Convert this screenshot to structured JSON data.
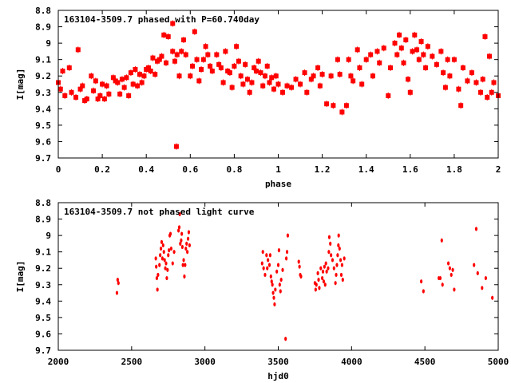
{
  "chart_data": [
    {
      "type": "scatter",
      "title": "163104-3509.7 phased with P=60.740day",
      "xlabel": "phase",
      "ylabel": "I[mag]",
      "xlim": [
        0,
        2
      ],
      "ylim": [
        9.7,
        8.8
      ],
      "y_inverted": true,
      "grid": false,
      "color": "#ff0000",
      "marker": "square",
      "x_ticks": [
        {
          "v": 0,
          "label": "0"
        },
        {
          "v": 0.2,
          "label": "0.2"
        },
        {
          "v": 0.4,
          "label": "0.4"
        },
        {
          "v": 0.6,
          "label": "0.6"
        },
        {
          "v": 0.8,
          "label": "0.8"
        },
        {
          "v": 1,
          "label": "1"
        },
        {
          "v": 1.2,
          "label": "1.2"
        },
        {
          "v": 1.4,
          "label": "1.4"
        },
        {
          "v": 1.6,
          "label": "1.6"
        },
        {
          "v": 1.8,
          "label": "1.8"
        },
        {
          "v": 2,
          "label": "2"
        }
      ],
      "y_ticks": [
        {
          "v": 8.8,
          "label": "8.8"
        },
        {
          "v": 8.9,
          "label": "8.9"
        },
        {
          "v": 9.0,
          "label": "9"
        },
        {
          "v": 9.1,
          "label": "9.1"
        },
        {
          "v": 9.2,
          "label": "9.2"
        },
        {
          "v": 9.3,
          "label": "9.3"
        },
        {
          "v": 9.4,
          "label": "9.4"
        },
        {
          "v": 9.5,
          "label": "9.5"
        },
        {
          "v": 9.6,
          "label": "9.6"
        },
        {
          "v": 9.7,
          "label": "9.7"
        }
      ],
      "points": [
        [
          0.0,
          9.24
        ],
        [
          0.01,
          9.28
        ],
        [
          0.02,
          9.17
        ],
        [
          0.03,
          9.32
        ],
        [
          0.05,
          9.15
        ],
        [
          0.06,
          9.3
        ],
        [
          0.08,
          9.33
        ],
        [
          0.09,
          9.04
        ],
        [
          0.1,
          9.28
        ],
        [
          0.11,
          9.26
        ],
        [
          0.12,
          9.35
        ],
        [
          0.13,
          9.34
        ],
        [
          0.15,
          9.2
        ],
        [
          0.16,
          9.29
        ],
        [
          0.17,
          9.23
        ],
        [
          0.18,
          9.34
        ],
        [
          0.19,
          9.32
        ],
        [
          0.2,
          9.25
        ],
        [
          0.21,
          9.34
        ],
        [
          0.22,
          9.26
        ],
        [
          0.23,
          9.31
        ],
        [
          0.25,
          9.21
        ],
        [
          0.26,
          9.23
        ],
        [
          0.27,
          9.24
        ],
        [
          0.28,
          9.31
        ],
        [
          0.29,
          9.22
        ],
        [
          0.3,
          9.27
        ],
        [
          0.31,
          9.21
        ],
        [
          0.32,
          9.32
        ],
        [
          0.33,
          9.18
        ],
        [
          0.34,
          9.25
        ],
        [
          0.35,
          9.16
        ],
        [
          0.36,
          9.26
        ],
        [
          0.37,
          9.19
        ],
        [
          0.38,
          9.24
        ],
        [
          0.39,
          9.2
        ],
        [
          0.4,
          9.16
        ],
        [
          0.41,
          9.15
        ],
        [
          0.42,
          9.17
        ],
        [
          0.43,
          9.09
        ],
        [
          0.44,
          9.19
        ],
        [
          0.45,
          9.11
        ],
        [
          0.46,
          9.1
        ],
        [
          0.47,
          9.08
        ],
        [
          0.48,
          8.95
        ],
        [
          0.49,
          9.12
        ],
        [
          0.5,
          8.96
        ],
        [
          0.52,
          8.88
        ],
        [
          0.52,
          9.05
        ],
        [
          0.53,
          9.11
        ],
        [
          0.537,
          9.63
        ],
        [
          0.54,
          9.07
        ],
        [
          0.55,
          9.2
        ],
        [
          0.56,
          9.05
        ],
        [
          0.57,
          8.98
        ],
        [
          0.58,
          9.07
        ],
        [
          0.6,
          9.2
        ],
        [
          0.61,
          9.14
        ],
        [
          0.62,
          8.93
        ],
        [
          0.63,
          9.1
        ],
        [
          0.64,
          9.23
        ],
        [
          0.65,
          9.16
        ],
        [
          0.66,
          9.1
        ],
        [
          0.67,
          9.02
        ],
        [
          0.68,
          9.07
        ],
        [
          0.69,
          9.14
        ],
        [
          0.7,
          9.17
        ],
        [
          0.72,
          9.07
        ],
        [
          0.73,
          9.13
        ],
        [
          0.74,
          9.15
        ],
        [
          0.75,
          9.24
        ],
        [
          0.76,
          9.05
        ],
        [
          0.77,
          9.17
        ],
        [
          0.78,
          9.18
        ],
        [
          0.79,
          9.27
        ],
        [
          0.8,
          9.14
        ],
        [
          0.81,
          9.02
        ],
        [
          0.82,
          9.11
        ],
        [
          0.83,
          9.2
        ],
        [
          0.84,
          9.25
        ],
        [
          0.85,
          9.13
        ],
        [
          0.86,
          9.22
        ],
        [
          0.87,
          9.3
        ],
        [
          0.88,
          9.24
        ],
        [
          0.89,
          9.15
        ],
        [
          0.9,
          9.17
        ],
        [
          0.91,
          9.11
        ],
        [
          0.92,
          9.18
        ],
        [
          0.93,
          9.26
        ],
        [
          0.94,
          9.2
        ],
        [
          0.95,
          9.14
        ],
        [
          0.96,
          9.24
        ],
        [
          0.97,
          9.21
        ],
        [
          0.98,
          9.28
        ],
        [
          0.99,
          9.2
        ],
        [
          1.0,
          9.25
        ],
        [
          1.02,
          9.3
        ],
        [
          1.04,
          9.26
        ],
        [
          1.06,
          9.27
        ],
        [
          1.08,
          9.22
        ],
        [
          1.1,
          9.25
        ],
        [
          1.12,
          9.18
        ],
        [
          1.13,
          9.3
        ],
        [
          1.15,
          9.22
        ],
        [
          1.16,
          9.2
        ],
        [
          1.18,
          9.15
        ],
        [
          1.19,
          9.26
        ],
        [
          1.2,
          9.19
        ],
        [
          1.22,
          9.37
        ],
        [
          1.24,
          9.2
        ],
        [
          1.25,
          9.38
        ],
        [
          1.27,
          9.1
        ],
        [
          1.28,
          9.19
        ],
        [
          1.29,
          9.42
        ],
        [
          1.31,
          9.38
        ],
        [
          1.32,
          9.1
        ],
        [
          1.33,
          9.2
        ],
        [
          1.34,
          9.23
        ],
        [
          1.36,
          9.04
        ],
        [
          1.37,
          9.15
        ],
        [
          1.38,
          9.25
        ],
        [
          1.4,
          9.1
        ],
        [
          1.42,
          9.07
        ],
        [
          1.43,
          9.2
        ],
        [
          1.45,
          9.05
        ],
        [
          1.46,
          9.12
        ],
        [
          1.48,
          9.03
        ],
        [
          1.5,
          9.32
        ],
        [
          1.51,
          9.15
        ],
        [
          1.53,
          9.0
        ],
        [
          1.54,
          9.07
        ],
        [
          1.55,
          8.95
        ],
        [
          1.56,
          9.03
        ],
        [
          1.57,
          9.12
        ],
        [
          1.58,
          8.98
        ],
        [
          1.59,
          9.22
        ],
        [
          1.6,
          9.3
        ],
        [
          1.61,
          9.05
        ],
        [
          1.62,
          8.95
        ],
        [
          1.63,
          9.04
        ],
        [
          1.64,
          9.1
        ],
        [
          1.65,
          8.99
        ],
        [
          1.66,
          9.07
        ],
        [
          1.67,
          9.15
        ],
        [
          1.68,
          9.02
        ],
        [
          1.7,
          9.08
        ],
        [
          1.72,
          9.13
        ],
        [
          1.74,
          9.05
        ],
        [
          1.75,
          9.18
        ],
        [
          1.76,
          9.27
        ],
        [
          1.77,
          9.1
        ],
        [
          1.78,
          9.2
        ],
        [
          1.8,
          9.1
        ],
        [
          1.82,
          9.28
        ],
        [
          1.83,
          9.38
        ],
        [
          1.84,
          9.15
        ],
        [
          1.86,
          9.23
        ],
        [
          1.88,
          9.18
        ],
        [
          1.9,
          9.24
        ],
        [
          1.92,
          9.3
        ],
        [
          1.93,
          9.22
        ],
        [
          1.94,
          8.96
        ],
        [
          1.95,
          9.33
        ],
        [
          1.96,
          9.08
        ],
        [
          1.97,
          9.3
        ],
        [
          1.98,
          9.24
        ],
        [
          2.0,
          9.32
        ]
      ]
    },
    {
      "type": "scatter",
      "title": "163104-3509.7 not phased light curve",
      "xlabel": "hjd0",
      "ylabel": "I[mag]",
      "xlim": [
        2000,
        5000
      ],
      "ylim": [
        9.7,
        8.8
      ],
      "y_inverted": true,
      "grid": false,
      "color": "#ff0000",
      "marker": "dot",
      "x_ticks": [
        {
          "v": 2000,
          "label": "2000"
        },
        {
          "v": 2500,
          "label": "2500"
        },
        {
          "v": 3000,
          "label": "3000"
        },
        {
          "v": 3500,
          "label": "3500"
        },
        {
          "v": 4000,
          "label": "4000"
        },
        {
          "v": 4500,
          "label": "4500"
        },
        {
          "v": 5000,
          "label": "5000"
        }
      ],
      "y_ticks": [
        {
          "v": 8.8,
          "label": "8.8"
        },
        {
          "v": 8.9,
          "label": "8.9"
        },
        {
          "v": 9.0,
          "label": "9"
        },
        {
          "v": 9.1,
          "label": "9.1"
        },
        {
          "v": 9.2,
          "label": "9.2"
        },
        {
          "v": 9.3,
          "label": "9.3"
        },
        {
          "v": 9.4,
          "label": "9.4"
        },
        {
          "v": 9.5,
          "label": "9.5"
        },
        {
          "v": 9.6,
          "label": "9.6"
        },
        {
          "v": 9.7,
          "label": "9.7"
        }
      ],
      "points": [
        [
          2400,
          9.35
        ],
        [
          2405,
          9.27
        ],
        [
          2410,
          9.29
        ],
        [
          2665,
          9.14
        ],
        [
          2668,
          9.19
        ],
        [
          2672,
          9.26
        ],
        [
          2676,
          9.33
        ],
        [
          2680,
          9.24
        ],
        [
          2690,
          9.18
        ],
        [
          2695,
          9.12
        ],
        [
          2700,
          9.08
        ],
        [
          2705,
          9.04
        ],
        [
          2710,
          9.14
        ],
        [
          2715,
          9.06
        ],
        [
          2720,
          9.1
        ],
        [
          2725,
          9.15
        ],
        [
          2730,
          9.2
        ],
        [
          2735,
          9.17
        ],
        [
          2740,
          9.26
        ],
        [
          2745,
          9.21
        ],
        [
          2750,
          9.12
        ],
        [
          2755,
          9.09
        ],
        [
          2760,
          9.0
        ],
        [
          2765,
          8.99
        ],
        [
          2770,
          9.08
        ],
        [
          2780,
          9.17
        ],
        [
          2790,
          9.1
        ],
        [
          2820,
          8.97
        ],
        [
          2825,
          8.95
        ],
        [
          2828,
          8.87
        ],
        [
          2832,
          9.05
        ],
        [
          2838,
          9.03
        ],
        [
          2842,
          8.99
        ],
        [
          2846,
          9.07
        ],
        [
          2850,
          9.18
        ],
        [
          2855,
          9.15
        ],
        [
          2860,
          9.25
        ],
        [
          2865,
          9.18
        ],
        [
          2870,
          9.08
        ],
        [
          2875,
          9.05
        ],
        [
          2880,
          9.1
        ],
        [
          2885,
          9.02
        ],
        [
          2890,
          8.98
        ],
        [
          2895,
          9.06
        ],
        [
          3390,
          9.17
        ],
        [
          3395,
          9.1
        ],
        [
          3400,
          9.2
        ],
        [
          3410,
          9.24
        ],
        [
          3420,
          9.12
        ],
        [
          3425,
          9.2
        ],
        [
          3430,
          9.15
        ],
        [
          3440,
          9.18
        ],
        [
          3445,
          9.12
        ],
        [
          3450,
          9.25
        ],
        [
          3455,
          9.28
        ],
        [
          3460,
          9.3
        ],
        [
          3465,
          9.35
        ],
        [
          3470,
          9.38
        ],
        [
          3475,
          9.42
        ],
        [
          3480,
          9.33
        ],
        [
          3490,
          9.22
        ],
        [
          3500,
          9.18
        ],
        [
          3505,
          9.09
        ],
        [
          3510,
          9.3
        ],
        [
          3515,
          9.34
        ],
        [
          3520,
          9.27
        ],
        [
          3530,
          9.21
        ],
        [
          3550,
          9.63
        ],
        [
          3555,
          9.14
        ],
        [
          3560,
          9.1
        ],
        [
          3565,
          9.0
        ],
        [
          3640,
          9.16
        ],
        [
          3645,
          9.19
        ],
        [
          3650,
          9.24
        ],
        [
          3655,
          9.25
        ],
        [
          3750,
          9.29
        ],
        [
          3755,
          9.33
        ],
        [
          3760,
          9.3
        ],
        [
          3770,
          9.23
        ],
        [
          3775,
          9.27
        ],
        [
          3780,
          9.32
        ],
        [
          3790,
          9.2
        ],
        [
          3800,
          9.26
        ],
        [
          3805,
          9.22
        ],
        [
          3810,
          9.28
        ],
        [
          3815,
          9.19
        ],
        [
          3820,
          9.3
        ],
        [
          3825,
          9.17
        ],
        [
          3830,
          9.22
        ],
        [
          3840,
          9.2
        ],
        [
          3845,
          9.1
        ],
        [
          3848,
          9.01
        ],
        [
          3855,
          9.05
        ],
        [
          3860,
          9.12
        ],
        [
          3870,
          9.15
        ],
        [
          3880,
          9.2
        ],
        [
          3890,
          9.29
        ],
        [
          3895,
          9.24
        ],
        [
          3900,
          9.18
        ],
        [
          3905,
          9.12
        ],
        [
          3910,
          9.06
        ],
        [
          3912,
          9.0
        ],
        [
          3918,
          9.08
        ],
        [
          3925,
          9.15
        ],
        [
          3930,
          9.24
        ],
        [
          3935,
          9.18
        ],
        [
          3940,
          9.27
        ],
        [
          3950,
          9.14
        ],
        [
          4475,
          9.28
        ],
        [
          4490,
          9.34
        ],
        [
          4595,
          9.26
        ],
        [
          4605,
          9.26
        ],
        [
          4615,
          9.03
        ],
        [
          4620,
          9.3
        ],
        [
          4660,
          9.17
        ],
        [
          4670,
          9.2
        ],
        [
          4680,
          9.24
        ],
        [
          4690,
          9.21
        ],
        [
          4700,
          9.33
        ],
        [
          4835,
          9.18
        ],
        [
          4850,
          8.96
        ],
        [
          4860,
          9.23
        ],
        [
          4890,
          9.32
        ],
        [
          4915,
          9.26
        ],
        [
          4960,
          9.38
        ]
      ]
    }
  ]
}
